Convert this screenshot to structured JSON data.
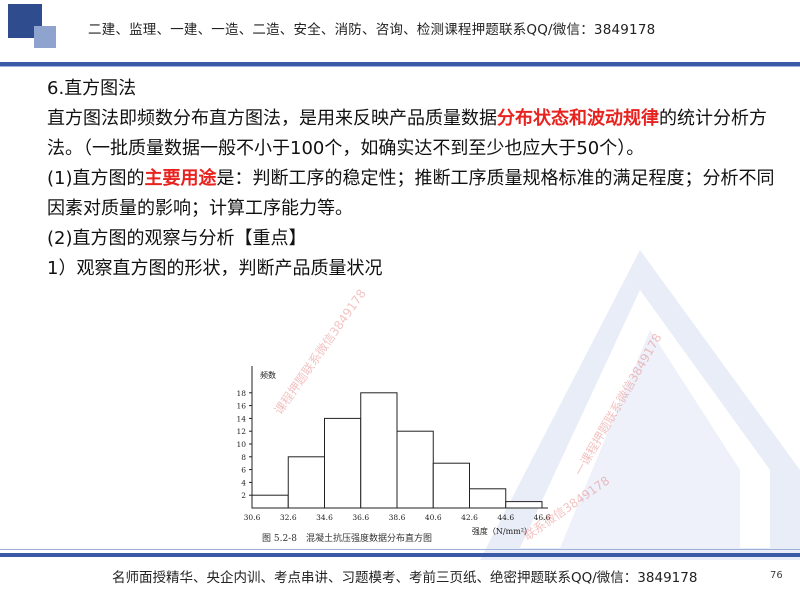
{
  "header": {
    "text": "二建、监理、一建、一造、二造、安全、消防、咨询、检测课程押题联系QQ/微信：3849178"
  },
  "section_title": "6.直方图法",
  "para1": {
    "before": "直方图法即频数分布直方图法，是用来反映产品质量数据",
    "highlight": "分布状态和波动规律",
    "after": "的统计分析方法。（一批质量数据一般不小于100个，如确实达不到至少也应大于50个）。"
  },
  "para2": {
    "before": "(1)直方图的",
    "highlight": "主要用途",
    "after": "是：判断工序的稳定性；推断工序质量规格标准的满足程度；分析不同因素对质量的影响；计算工序能力等。"
  },
  "para3": "(2)直方图的观察与分析【重点】",
  "para4": "1）观察直方图的形状，判断产品质量状况",
  "figure": {
    "ylabel": "频数",
    "xlabel": "强度（N/mm²）",
    "caption": "图 5.2-8　混凝土抗压强度数据分布直方图"
  },
  "chart_data": {
    "type": "bar",
    "bin_edges": [
      30.6,
      32.6,
      34.6,
      36.6,
      38.6,
      40.6,
      42.6,
      44.6,
      46.6
    ],
    "values": [
      2,
      8,
      14,
      18,
      12,
      7,
      3,
      1
    ],
    "ylim": [
      0,
      20
    ],
    "yticks": [
      2,
      4,
      6,
      8,
      10,
      12,
      14,
      16,
      18
    ],
    "xticks": [
      "30.6",
      "32.6",
      "34.6",
      "36.6",
      "38.6",
      "40.6",
      "42.6",
      "44.6",
      "46.6"
    ],
    "ylabel": "频数",
    "xlabel": "强度（N/mm²）"
  },
  "watermarks": {
    "w1": "课程押题联系微信3849178",
    "w2": "一课程押题联系微信3849178",
    "w3": "联系微信3849178"
  },
  "footer": {
    "text": "名师面授精华、央企内训、考点串讲、习题模考、考前三页纸、绝密押题联系QQ/微信：3849178",
    "page": "76"
  }
}
